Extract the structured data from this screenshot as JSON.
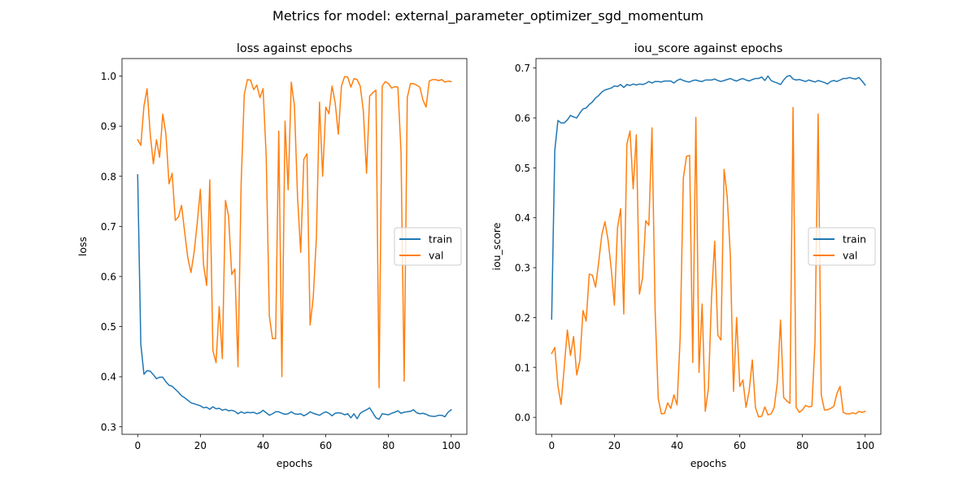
{
  "figure": {
    "suptitle": "Metrics for model: external_parameter_optimizer_sgd_momentum"
  },
  "colors": {
    "train": "#1f77b4",
    "val": "#ff7f0e",
    "axis": "#000000"
  },
  "chart_data": [
    {
      "type": "line",
      "title": "loss against epochs",
      "xlabel": "epochs",
      "ylabel": "loss",
      "xlim": [
        -5,
        105
      ],
      "ylim": [
        0.285,
        1.035
      ],
      "xticks": [
        0,
        20,
        40,
        60,
        80,
        100
      ],
      "xtick_labels": [
        "0",
        "20",
        "40",
        "60",
        "80",
        "100"
      ],
      "yticks": [
        0.3,
        0.4,
        0.5,
        0.6,
        0.7,
        0.8,
        0.9,
        1.0
      ],
      "ytick_labels": [
        "0.3",
        "0.4",
        "0.5",
        "0.6",
        "0.7",
        "0.8",
        "0.9",
        "1.0"
      ],
      "grid": false,
      "legend": "center right",
      "series": [
        {
          "name": "train",
          "color": "#1f77b4",
          "values": [
            0.803,
            0.465,
            0.405,
            0.412,
            0.411,
            0.404,
            0.396,
            0.399,
            0.399,
            0.39,
            0.383,
            0.381,
            0.375,
            0.369,
            0.362,
            0.358,
            0.353,
            0.348,
            0.346,
            0.344,
            0.342,
            0.338,
            0.339,
            0.335,
            0.34,
            0.336,
            0.337,
            0.333,
            0.335,
            0.332,
            0.333,
            0.331,
            0.326,
            0.33,
            0.327,
            0.329,
            0.328,
            0.329,
            0.326,
            0.328,
            0.333,
            0.328,
            0.323,
            0.326,
            0.33,
            0.33,
            0.327,
            0.325,
            0.326,
            0.33,
            0.326,
            0.325,
            0.326,
            0.322,
            0.325,
            0.33,
            0.327,
            0.325,
            0.323,
            0.327,
            0.33,
            0.327,
            0.322,
            0.327,
            0.328,
            0.327,
            0.324,
            0.326,
            0.318,
            0.326,
            0.316,
            0.327,
            0.331,
            0.334,
            0.338,
            0.328,
            0.318,
            0.315,
            0.326,
            0.325,
            0.324,
            0.327,
            0.329,
            0.332,
            0.327,
            0.329,
            0.33,
            0.331,
            0.334,
            0.328,
            0.326,
            0.327,
            0.325,
            0.322,
            0.321,
            0.321,
            0.323,
            0.323,
            0.32,
            0.329,
            0.334
          ]
        },
        {
          "name": "val",
          "color": "#ff7f0e",
          "values": [
            0.873,
            0.862,
            0.94,
            0.975,
            0.885,
            0.825,
            0.873,
            0.838,
            0.924,
            0.885,
            0.785,
            0.806,
            0.712,
            0.719,
            0.742,
            0.688,
            0.637,
            0.608,
            0.648,
            0.707,
            0.774,
            0.623,
            0.582,
            0.793,
            0.452,
            0.428,
            0.54,
            0.436,
            0.752,
            0.72,
            0.604,
            0.615,
            0.42,
            0.785,
            0.963,
            0.993,
            0.992,
            0.973,
            0.982,
            0.957,
            0.975,
            0.839,
            0.521,
            0.476,
            0.476,
            0.89,
            0.4,
            0.91,
            0.773,
            0.988,
            0.941,
            0.758,
            0.648,
            0.834,
            0.845,
            0.503,
            0.558,
            0.677,
            0.948,
            0.8,
            0.938,
            0.925,
            0.98,
            0.947,
            0.884,
            0.98,
            0.999,
            0.998,
            0.978,
            0.995,
            0.993,
            0.98,
            0.929,
            0.806,
            0.96,
            0.967,
            0.972,
            0.378,
            0.98,
            0.989,
            0.985,
            0.976,
            0.979,
            0.978,
            0.849,
            0.391,
            0.957,
            0.985,
            0.985,
            0.982,
            0.978,
            0.952,
            0.938,
            0.99,
            0.993,
            0.993,
            0.991,
            0.993,
            0.988,
            0.99,
            0.989
          ]
        }
      ]
    },
    {
      "type": "line",
      "title": "iou_score against epochs",
      "xlabel": "epochs",
      "ylabel": "iou_score",
      "xlim": [
        -5,
        105
      ],
      "ylim": [
        -0.034,
        0.719
      ],
      "xticks": [
        0,
        20,
        40,
        60,
        80,
        100
      ],
      "xtick_labels": [
        "0",
        "20",
        "40",
        "60",
        "80",
        "100"
      ],
      "yticks": [
        0.0,
        0.1,
        0.2,
        0.3,
        0.4,
        0.5,
        0.6,
        0.7
      ],
      "ytick_labels": [
        "0.0",
        "0.1",
        "0.2",
        "0.3",
        "0.4",
        "0.5",
        "0.6",
        "0.7"
      ],
      "grid": false,
      "legend": "center right",
      "series": [
        {
          "name": "train",
          "color": "#1f77b4",
          "values": [
            0.197,
            0.535,
            0.595,
            0.59,
            0.59,
            0.596,
            0.605,
            0.602,
            0.6,
            0.61,
            0.618,
            0.62,
            0.627,
            0.632,
            0.64,
            0.645,
            0.652,
            0.656,
            0.658,
            0.66,
            0.664,
            0.663,
            0.667,
            0.661,
            0.667,
            0.665,
            0.668,
            0.666,
            0.668,
            0.667,
            0.669,
            0.673,
            0.67,
            0.673,
            0.673,
            0.672,
            0.674,
            0.674,
            0.674,
            0.67,
            0.675,
            0.678,
            0.675,
            0.673,
            0.672,
            0.675,
            0.676,
            0.674,
            0.673,
            0.676,
            0.676,
            0.676,
            0.678,
            0.675,
            0.673,
            0.675,
            0.677,
            0.679,
            0.676,
            0.674,
            0.677,
            0.679,
            0.676,
            0.674,
            0.677,
            0.679,
            0.679,
            0.682,
            0.675,
            0.684,
            0.675,
            0.672,
            0.67,
            0.667,
            0.676,
            0.683,
            0.685,
            0.678,
            0.676,
            0.677,
            0.675,
            0.673,
            0.676,
            0.674,
            0.672,
            0.675,
            0.673,
            0.671,
            0.668,
            0.673,
            0.675,
            0.673,
            0.676,
            0.679,
            0.679,
            0.681,
            0.679,
            0.678,
            0.681,
            0.674,
            0.666
          ]
        },
        {
          "name": "val",
          "color": "#ff7f0e",
          "values": [
            0.128,
            0.14,
            0.063,
            0.026,
            0.1,
            0.175,
            0.124,
            0.162,
            0.085,
            0.114,
            0.214,
            0.193,
            0.287,
            0.285,
            0.261,
            0.311,
            0.366,
            0.392,
            0.355,
            0.298,
            0.225,
            0.38,
            0.418,
            0.207,
            0.548,
            0.574,
            0.458,
            0.566,
            0.247,
            0.28,
            0.394,
            0.385,
            0.58,
            0.215,
            0.038,
            0.007,
            0.008,
            0.029,
            0.018,
            0.045,
            0.025,
            0.16,
            0.479,
            0.523,
            0.525,
            0.11,
            0.601,
            0.09,
            0.227,
            0.012,
            0.058,
            0.241,
            0.353,
            0.165,
            0.155,
            0.497,
            0.442,
            0.323,
            0.052,
            0.2,
            0.062,
            0.075,
            0.02,
            0.053,
            0.115,
            0.02,
            0.001,
            0.002,
            0.021,
            0.005,
            0.007,
            0.02,
            0.071,
            0.195,
            0.04,
            0.033,
            0.028,
            0.621,
            0.02,
            0.01,
            0.015,
            0.024,
            0.021,
            0.022,
            0.152,
            0.608,
            0.045,
            0.015,
            0.015,
            0.018,
            0.022,
            0.048,
            0.062,
            0.01,
            0.007,
            0.007,
            0.009,
            0.007,
            0.012,
            0.01,
            0.012
          ]
        }
      ]
    }
  ]
}
